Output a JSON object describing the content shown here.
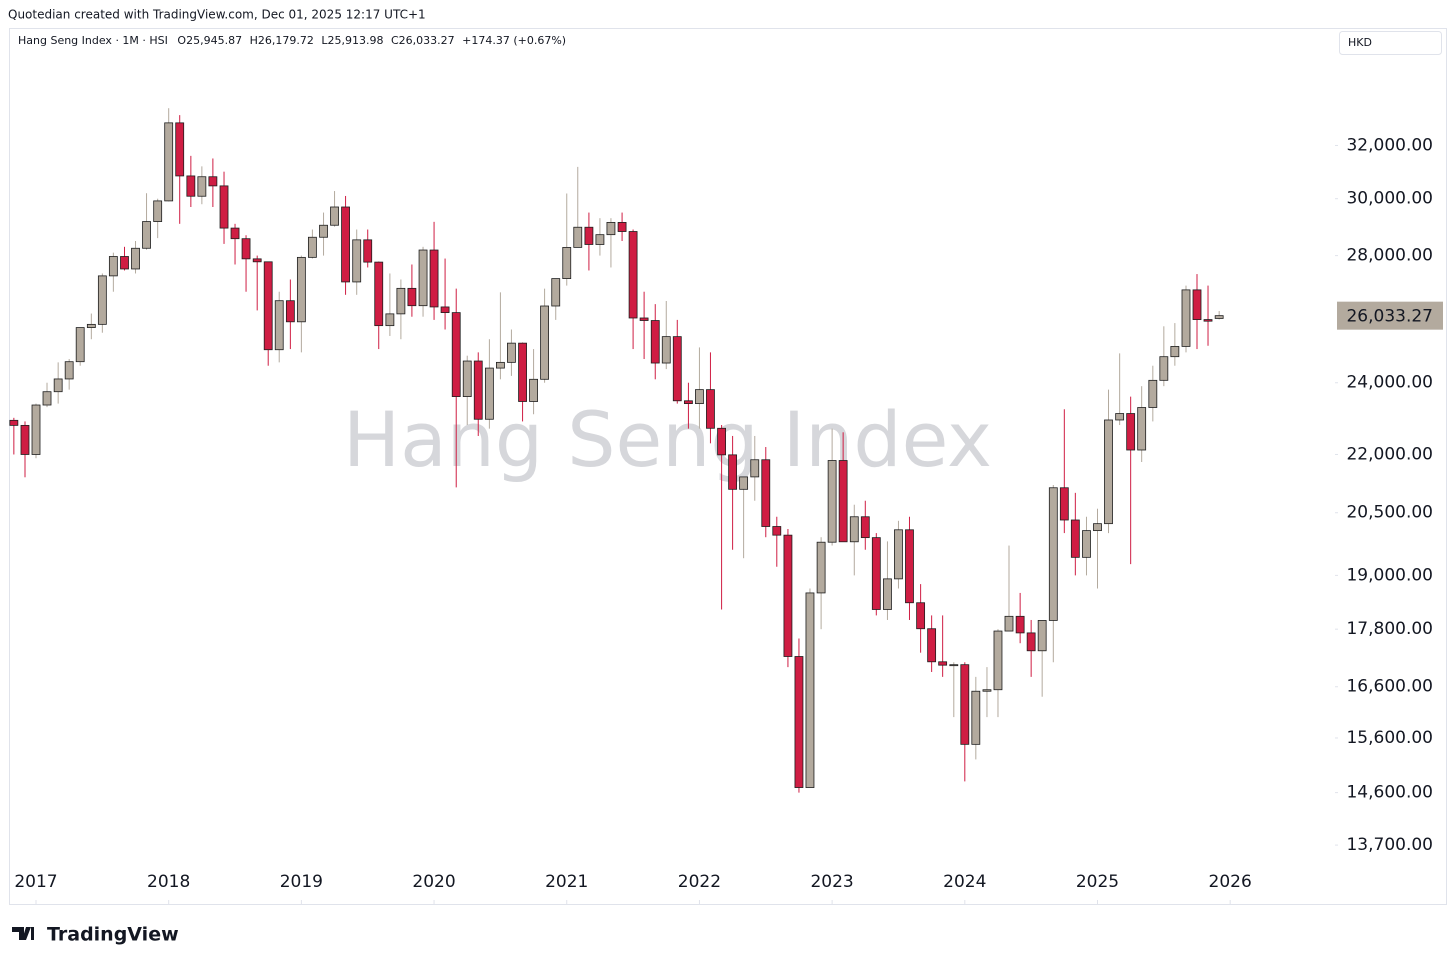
{
  "attribution": "Quotedian created with TradingView.com, Dec 01, 2025 12:17 UTC+1",
  "header": {
    "symbol": "Hang Seng Index · 1M · HSI",
    "open": "O25,945.87",
    "high": "H26,179.72",
    "low": "L25,913.98",
    "close": "C26,033.27",
    "change": "+174.37 (+0.67%)"
  },
  "currency": "HKD",
  "logo": "TradingView",
  "chart_data": {
    "type": "candlestick",
    "watermark": "Hang Seng Index",
    "log_scale": true,
    "grid": false,
    "up_color": "#b3aa9e",
    "down_color": "#cf1d43",
    "xlim": [
      2016.804,
      2026.79
    ],
    "xticks": [
      2017,
      2018,
      2019,
      2020,
      2021,
      2022,
      2023,
      2024,
      2025,
      2026
    ],
    "ylim": [
      12740,
      36810
    ],
    "yticks": [
      {
        "value": 32000,
        "label": "32,000.00"
      },
      {
        "value": 30000,
        "label": "30,000.00"
      },
      {
        "value": 28000,
        "label": "28,000.00"
      },
      {
        "value": 24000,
        "label": "24,000.00"
      },
      {
        "value": 22000,
        "label": "22,000.00"
      },
      {
        "value": 20500,
        "label": "20,500.00"
      },
      {
        "value": 19000,
        "label": "19,000.00"
      },
      {
        "value": 17800,
        "label": "17,800.00"
      },
      {
        "value": 16600,
        "label": "16,600.00"
      },
      {
        "value": 15600,
        "label": "15,600.00"
      },
      {
        "value": 14600,
        "label": "14,600.00"
      },
      {
        "value": 13700,
        "label": "13,700.00"
      }
    ],
    "last_price": {
      "value": 26033.27,
      "label": "26,033.27"
    },
    "x": [
      2016.833,
      2016.917,
      2017,
      2017.083,
      2017.167,
      2017.25,
      2017.333,
      2017.417,
      2017.5,
      2017.583,
      2017.667,
      2017.75,
      2017.833,
      2017.917,
      2018,
      2018.083,
      2018.167,
      2018.25,
      2018.333,
      2018.417,
      2018.5,
      2018.583,
      2018.667,
      2018.75,
      2018.833,
      2018.917,
      2019,
      2019.083,
      2019.167,
      2019.25,
      2019.333,
      2019.417,
      2019.5,
      2019.583,
      2019.667,
      2019.75,
      2019.833,
      2019.917,
      2020,
      2020.083,
      2020.167,
      2020.25,
      2020.333,
      2020.417,
      2020.5,
      2020.583,
      2020.667,
      2020.75,
      2020.833,
      2020.917,
      2021,
      2021.083,
      2021.167,
      2021.25,
      2021.333,
      2021.417,
      2021.5,
      2021.583,
      2021.667,
      2021.75,
      2021.833,
      2021.917,
      2022,
      2022.083,
      2022.167,
      2022.25,
      2022.333,
      2022.417,
      2022.5,
      2022.583,
      2022.667,
      2022.75,
      2022.833,
      2022.917,
      2023,
      2023.083,
      2023.167,
      2023.25,
      2023.333,
      2023.417,
      2023.5,
      2023.583,
      2023.667,
      2023.75,
      2023.833,
      2023.917,
      2024,
      2024.083,
      2024.167,
      2024.25,
      2024.333,
      2024.417,
      2024.5,
      2024.583,
      2024.667,
      2024.75,
      2024.833,
      2024.917,
      2025,
      2025.083,
      2025.167,
      2025.25,
      2025.333,
      2025.417,
      2025.5,
      2025.583,
      2025.667,
      2025.75,
      2025.833,
      2025.917
    ],
    "open": [
      22930,
      22790,
      22000,
      23360,
      23740,
      24110,
      24620,
      25660,
      25760,
      27320,
      27970,
      27550,
      28250,
      29180,
      29920,
      32890,
      30840,
      30090,
      30810,
      30470,
      28950,
      28580,
      27890,
      27790,
      24980,
      26510,
      25840,
      27940,
      28630,
      29050,
      29700,
      27120,
      28540,
      27780,
      25720,
      26090,
      26910,
      26350,
      28190,
      26310,
      26130,
      23600,
      24640,
      22960,
      24430,
      24600,
      25180,
      23460,
      24100,
      26340,
      27230,
      28280,
      28980,
      28380,
      28720,
      29150,
      28830,
      25960,
      25880,
      24580,
      25380,
      23480,
      23400,
      23800,
      22710,
      21990,
      21090,
      21410,
      21860,
      20160,
      19950,
      17220,
      14690,
      18600,
      19780,
      21840,
      19790,
      20400,
      19890,
      18230,
      18920,
      20080,
      18380,
      17810,
      17110,
      17040,
      17050,
      15480,
      16510,
      16540,
      17760,
      18080,
      17720,
      17340,
      17990,
      21130,
      20320,
      19420,
      20060,
      20230,
      22940,
      23120,
      22120,
      23290,
      24070,
      24770,
      25080,
      26860,
      25910,
      25945.87
    ],
    "high": [
      23000,
      22900,
      23400,
      24000,
      24600,
      24700,
      25500,
      26100,
      27400,
      28100,
      28300,
      28500,
      30200,
      30000,
      33480,
      33200,
      31600,
      31200,
      31500,
      31000,
      29100,
      28700,
      28000,
      27800,
      26800,
      27200,
      28000,
      28900,
      29500,
      30280,
      30100,
      28900,
      28900,
      27800,
      27400,
      27200,
      27700,
      28300,
      29170,
      27900,
      26900,
      24800,
      24900,
      25300,
      26780,
      25600,
      25200,
      25000,
      26900,
      27000,
      30190,
      31180,
      29500,
      29300,
      29300,
      29500,
      28900,
      26800,
      26400,
      26500,
      25900,
      24000,
      25050,
      24900,
      22800,
      22500,
      21400,
      22500,
      22200,
      20400,
      20100,
      17600,
      18700,
      19900,
      22700,
      22600,
      20700,
      20800,
      20000,
      19800,
      20300,
      20400,
      18800,
      18100,
      18100,
      17100,
      17100,
      16800,
      17000,
      17800,
      19700,
      18600,
      18000,
      17900,
      21200,
      23240,
      21000,
      20400,
      20600,
      23800,
      24870,
      23600,
      23900,
      24500,
      25700,
      25800,
      27000,
      27380,
      27000,
      26179.72
    ],
    "low": [
      22000,
      21400,
      21900,
      23300,
      23400,
      23800,
      24500,
      25300,
      25500,
      26800,
      27500,
      27400,
      28200,
      28600,
      29900,
      29100,
      29700,
      29800,
      29700,
      28400,
      27700,
      26800,
      26200,
      24500,
      24600,
      25000,
      24900,
      27900,
      28000,
      29000,
      26700,
      26700,
      27600,
      25000,
      25400,
      25300,
      26000,
      26000,
      25900,
      25600,
      21140,
      22800,
      22500,
      22700,
      24100,
      24200,
      22900,
      23100,
      24000,
      25900,
      27000,
      28300,
      27500,
      28000,
      27600,
      28500,
      25000,
      24700,
      24100,
      24400,
      23400,
      22700,
      22700,
      22300,
      18230,
      19600,
      19400,
      20800,
      19900,
      19200,
      17000,
      14600,
      14700,
      17800,
      19700,
      19800,
      19000,
      19600,
      18100,
      18000,
      18700,
      18000,
      17300,
      16900,
      16800,
      16000,
      14800,
      15200,
      16000,
      16000,
      17800,
      17500,
      16800,
      16400,
      17100,
      20000,
      19000,
      19000,
      18700,
      20000,
      22800,
      19260,
      21800,
      22900,
      23900,
      24500,
      24900,
      25000,
      25100,
      25913.98
    ],
    "close": [
      22790,
      22000,
      23360,
      23740,
      24110,
      24620,
      25660,
      25760,
      27320,
      27970,
      27550,
      28250,
      29180,
      29920,
      32890,
      30840,
      30090,
      30810,
      30470,
      28950,
      28580,
      27890,
      27790,
      24980,
      26510,
      25840,
      27940,
      28630,
      29050,
      29700,
      27120,
      28540,
      27780,
      25720,
      26090,
      26910,
      26350,
      28190,
      26310,
      26130,
      23600,
      24640,
      22960,
      24430,
      24600,
      25180,
      23460,
      24100,
      26340,
      27230,
      28280,
      28980,
      28380,
      28720,
      29150,
      28830,
      25960,
      25880,
      24580,
      25380,
      23480,
      23400,
      23800,
      22710,
      21990,
      21090,
      21410,
      21860,
      20160,
      19950,
      17220,
      14690,
      18600,
      19780,
      21840,
      19790,
      20400,
      19890,
      18230,
      18920,
      20080,
      18380,
      17810,
      17110,
      17040,
      17050,
      15480,
      16510,
      16540,
      17760,
      18080,
      17720,
      17340,
      17990,
      21130,
      20320,
      19420,
      20060,
      20230,
      22940,
      23120,
      22120,
      23290,
      24070,
      24770,
      25080,
      26860,
      25910,
      25860,
      26033.27
    ]
  }
}
